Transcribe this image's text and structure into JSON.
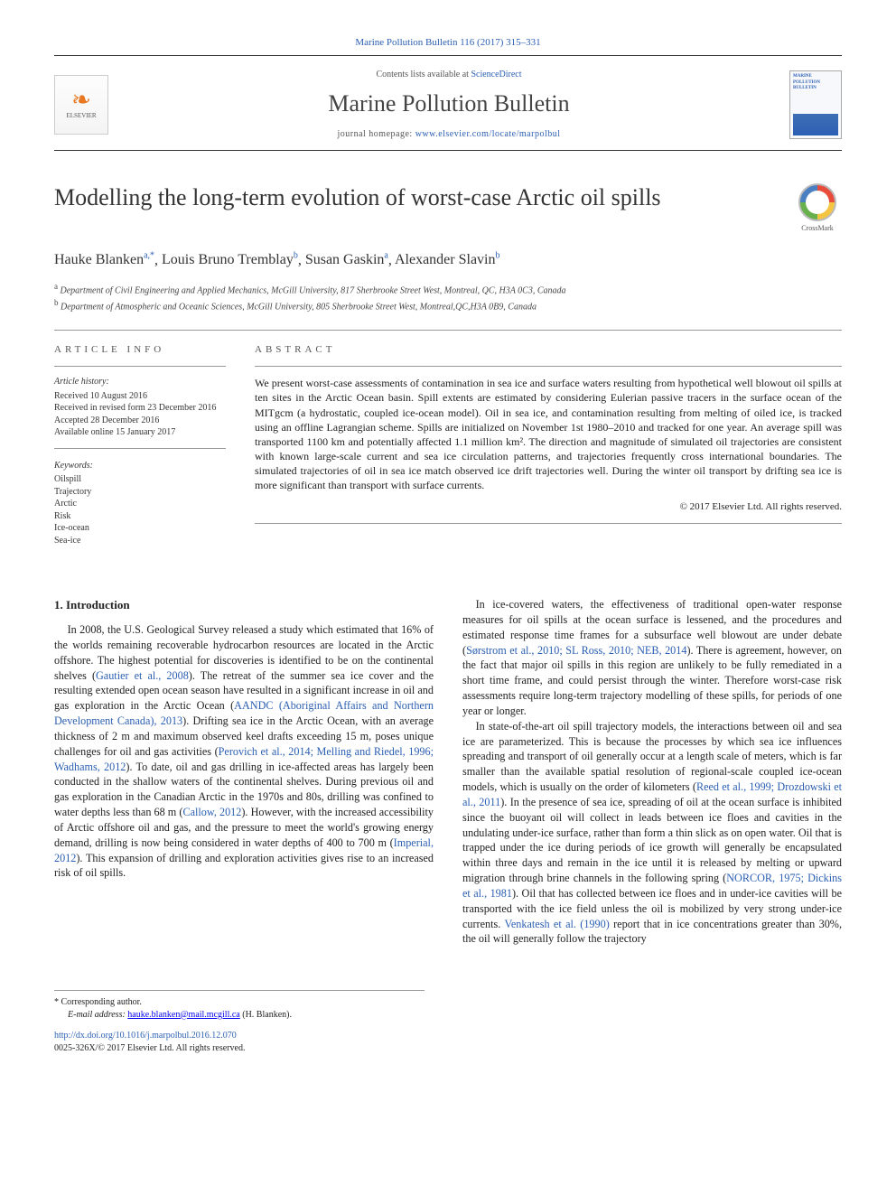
{
  "citation": "Marine Pollution Bulletin 116 (2017) 315–331",
  "header": {
    "contents_prefix": "Contents lists available at ",
    "contents_link": "ScienceDirect",
    "journal_name": "Marine Pollution Bulletin",
    "homepage_prefix": "journal homepage: ",
    "homepage_url": "www.elsevier.com/locate/marpolbul",
    "cover_label": "MARINE POLLUTION BULLETIN"
  },
  "elsevier_label": "ELSEVIER",
  "crossmark_label": "CrossMark",
  "title": "Modelling the long-term evolution of worst-case Arctic oil spills",
  "authors_html": "Hauke Blanken",
  "authors": [
    {
      "name": "Hauke Blanken",
      "sup": "a,*"
    },
    {
      "name": "Louis Bruno Tremblay",
      "sup": "b"
    },
    {
      "name": "Susan Gaskin",
      "sup": "a"
    },
    {
      "name": "Alexander Slavin",
      "sup": "b"
    }
  ],
  "affiliations": [
    {
      "sup": "a",
      "text": "Department of Civil Engineering and Applied Mechanics, McGill University, 817 Sherbrooke Street West, Montreal, QC, H3A 0C3, Canada"
    },
    {
      "sup": "b",
      "text": "Department of Atmospheric and Oceanic Sciences, McGill University, 805 Sherbrooke Street West, Montreal,QC,H3A 0B9, Canada"
    }
  ],
  "info": {
    "heading": "article info",
    "history_heading": "Article history:",
    "history": [
      "Received 10 August 2016",
      "Received in revised form 23 December 2016",
      "Accepted 28 December 2016",
      "Available online 15 January 2017"
    ],
    "keywords_heading": "Keywords:",
    "keywords": [
      "Oilspill",
      "Trajectory",
      "Arctic",
      "Risk",
      "Ice-ocean",
      "Sea-ice"
    ]
  },
  "abstract": {
    "heading": "abstract",
    "body": "We present worst-case assessments of contamination in sea ice and surface waters resulting from hypothetical well blowout oil spills at ten sites in the Arctic Ocean basin. Spill extents are estimated by considering Eulerian passive tracers in the surface ocean of the MITgcm (a hydrostatic, coupled ice-ocean model). Oil in sea ice, and contamination resulting from melting of oiled ice, is tracked using an offline Lagrangian scheme. Spills are initialized on November 1st 1980–2010 and tracked for one year. An average spill was transported 1100 km and potentially affected 1.1 million km². The direction and magnitude of simulated oil trajectories are consistent with known large-scale current and sea ice circulation patterns, and trajectories frequently cross international boundaries. The simulated trajectories of oil in sea ice match observed ice drift trajectories well. During the winter oil transport by drifting sea ice is more significant than transport with surface currents.",
    "copyright": "© 2017 Elsevier Ltd. All rights reserved."
  },
  "body": {
    "section_heading": "1. Introduction",
    "col1": "In 2008, the U.S. Geological Survey released a study which estimated that 16% of the worlds remaining recoverable hydrocarbon resources are located in the Arctic offshore. The highest potential for discoveries is identified to be on the continental shelves (Gautier et al., 2008). The retreat of the summer sea ice cover and the resulting extended open ocean season have resulted in a significant increase in oil and gas exploration in the Arctic Ocean (AANDC (Aboriginal Affairs and Northern Development Canada), 2013). Drifting sea ice in the Arctic Ocean, with an average thickness of 2 m and maximum observed keel drafts exceeding 15 m, poses unique challenges for oil and gas activities (Perovich et al., 2014; Melling and Riedel, 1996; Wadhams, 2012). To date, oil and gas drilling in ice-affected areas has largely been conducted in the shallow waters of the continental shelves. During previous oil and gas exploration in the Canadian Arctic in the 1970s and 80s, drilling was confined to water depths less than 68 m (Callow, 2012). However, with the increased accessibility of Arctic offshore oil and gas, and the pressure to meet the world's growing energy demand, drilling is now being considered in water depths of 400 to 700 m (Imperial, 2012). This expansion of drilling and exploration activities gives rise to an increased risk of oil spills.",
    "col1_links": [
      "Gautier et al., 2008",
      "AANDC (Aboriginal Affairs and Northern Development Canada), 2013",
      "Perovich et al., 2014; Melling and Riedel, 1996; Wadhams, 2012",
      "Callow, 2012",
      "Imperial, 2012"
    ],
    "col2a": "In ice-covered waters, the effectiveness of traditional open-water response measures for oil spills at the ocean surface is lessened, and the procedures and estimated response time frames for a subsurface well blowout are under debate (Sørstrom et al., 2010; SL Ross, 2010; NEB, 2014). There is agreement, however, on the fact that major oil spills in this region are unlikely to be fully remediated in a short time frame, and could persist through the winter. Therefore worst-case risk assessments require long-term trajectory modelling of these spills, for periods of one year or longer.",
    "col2b": "In state-of-the-art oil spill trajectory models, the interactions between oil and sea ice are parameterized. This is because the processes by which sea ice influences spreading and transport of oil generally occur at a length scale of meters, which is far smaller than the available spatial resolution of regional-scale coupled ice-ocean models, which is usually on the order of kilometers (Reed et al., 1999; Drozdowski et al., 2011). In the presence of sea ice, spreading of oil at the ocean surface is inhibited since the buoyant oil will collect in leads between ice floes and cavities in the undulating under-ice surface, rather than form a thin slick as on open water. Oil that is trapped under the ice during periods of ice growth will generally be encapsulated within three days and remain in the ice until it is released by melting or upward migration through brine channels in the following spring (NORCOR, 1975; Dickins et al., 1981). Oil that has collected between ice floes and in under-ice cavities will be transported with the ice field unless the oil is mobilized by very strong under-ice currents. Venkatesh et al. (1990) report that in ice concentrations greater than 30%, the oil will generally follow the trajectory",
    "col2_links": [
      "Sørstrom et al., 2010; SL Ross, 2010; NEB, 2014",
      "Reed et al., 1999; Drozdowski et al., 2011",
      "NORCOR, 1975; Dickins et al., 1981",
      "Venkatesh et al. (1990)"
    ]
  },
  "footnote": {
    "corr": "* Corresponding author.",
    "email_label": "E-mail address: ",
    "email": "hauke.blanken@mail.mcgill.ca",
    "email_suffix": " (H. Blanken)."
  },
  "footer": {
    "doi": "http://dx.doi.org/10.1016/j.marpolbul.2016.12.070",
    "issn_line": "0025-326X/© 2017 Elsevier Ltd. All rights reserved."
  }
}
